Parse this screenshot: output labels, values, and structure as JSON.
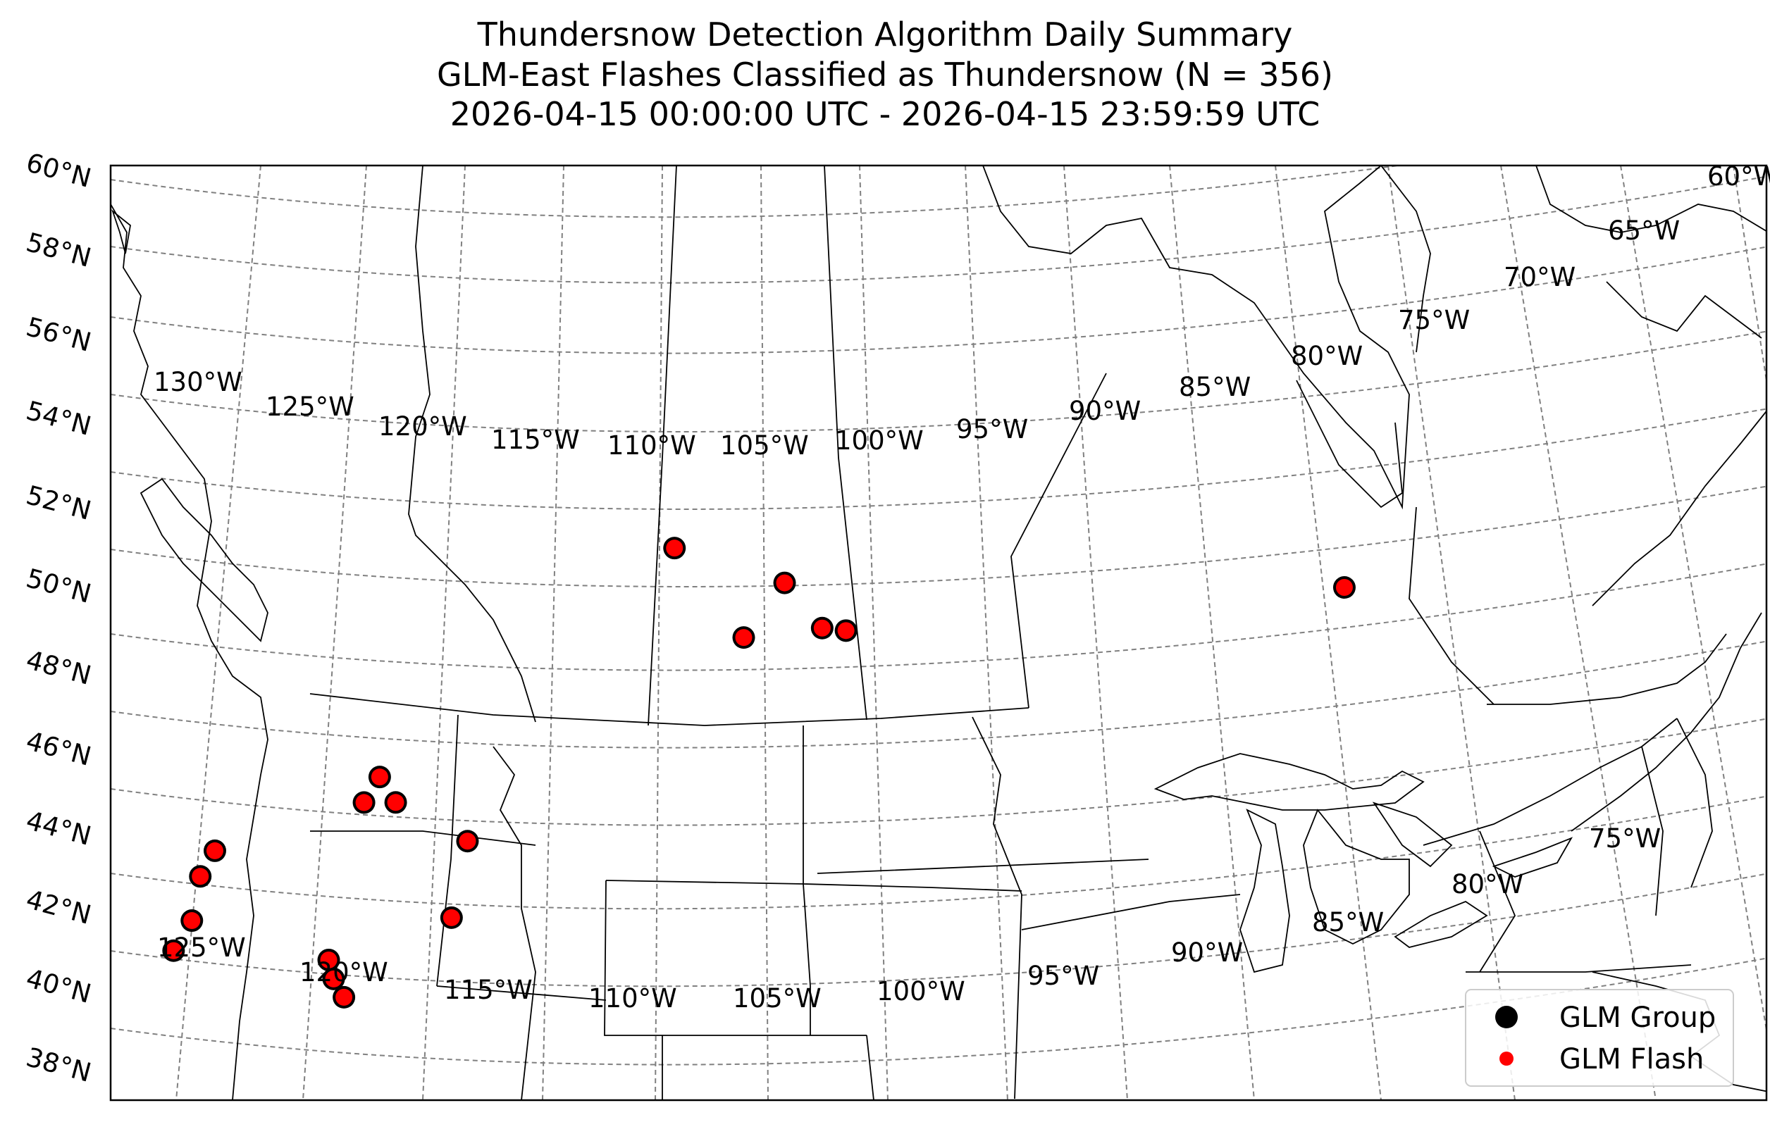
{
  "title": {
    "line1": "Thundersnow Detection Algorithm Daily Summary",
    "line2": "GLM-East Flashes Classified as Thundersnow (N = 356)",
    "line3": "2026-04-15 00:00:00 UTC - 2026-04-15 23:59:59 UTC"
  },
  "latitude_labels": [
    "60°N",
    "58°N",
    "56°N",
    "54°N",
    "52°N",
    "50°N",
    "48°N",
    "46°N",
    "44°N",
    "42°N",
    "40°N",
    "38°N"
  ],
  "longitude_labels_upper": [
    "130°W",
    "125°W",
    "120°W",
    "115°W",
    "110°W",
    "105°W",
    "100°W",
    "95°W",
    "90°W",
    "85°W",
    "80°W",
    "75°W",
    "70°W",
    "65°W",
    "60°W"
  ],
  "longitude_labels_lower": [
    "125°W",
    "120°W",
    "115°W",
    "110°W",
    "105°W",
    "100°W",
    "95°W",
    "90°W",
    "85°W",
    "80°W",
    "75°W"
  ],
  "legend": {
    "group_label": "GLM Group",
    "flash_label": "GLM Flash"
  },
  "colors": {
    "group": "#000000",
    "flash": "#ff0000",
    "gridline": "#808080",
    "boundary": "#000000"
  },
  "flash_data": {
    "type": "scatter",
    "projection": "lambert-conformal",
    "lat_range": [
      38,
      60
    ],
    "lon_range": [
      -130,
      -60
    ],
    "gridlines": "dashed",
    "legend_position": "bottom-right",
    "clusters": [
      {
        "lat": 52.4,
        "lon": -105.9
      },
      {
        "lat": 51.3,
        "lon": -101.1
      },
      {
        "lat": 50.0,
        "lon": -102.8
      },
      {
        "lat": 50.1,
        "lon": -99.5
      },
      {
        "lat": 50.0,
        "lon": -98.5
      },
      {
        "lat": 50.8,
        "lon": -77.3
      },
      {
        "lat": 47.4,
        "lon": -117.5
      },
      {
        "lat": 46.8,
        "lon": -118.0
      },
      {
        "lat": 46.7,
        "lon": -116.7
      },
      {
        "lat": 46.1,
        "lon": -123.8
      },
      {
        "lat": 45.5,
        "lon": -124.2
      },
      {
        "lat": 44.4,
        "lon": -124.2
      },
      {
        "lat": 43.7,
        "lon": -124.7
      },
      {
        "lat": 45.5,
        "lon": -113.6
      },
      {
        "lat": 43.6,
        "lon": -113.9
      },
      {
        "lat": 42.9,
        "lon": -118.5
      },
      {
        "lat": 42.4,
        "lon": -118.2
      },
      {
        "lat": 41.9,
        "lon": -117.7
      }
    ]
  }
}
